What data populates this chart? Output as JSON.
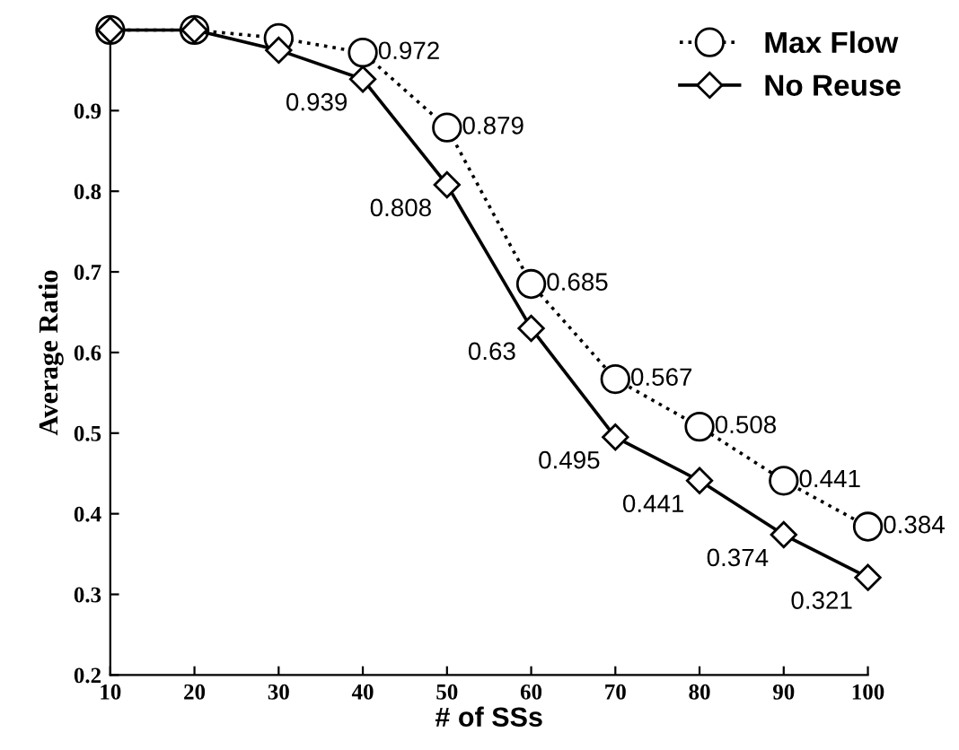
{
  "chart_data": {
    "type": "line",
    "xlabel": "# of SSs",
    "ylabel": "Average Ratio",
    "x": [
      10,
      20,
      30,
      40,
      50,
      60,
      70,
      80,
      90,
      100
    ],
    "series": [
      {
        "name": "Max Flow",
        "color": "#000000",
        "marker": "circle",
        "line_style": "dotted",
        "values": [
          1.0,
          1.0,
          0.99,
          0.972,
          0.879,
          0.685,
          0.567,
          0.508,
          0.441,
          0.384
        ],
        "value_labels": [
          null,
          null,
          null,
          "0.972",
          "0.879",
          "0.685",
          "0.567",
          "0.508",
          "0.441",
          "0.384"
        ]
      },
      {
        "name": "No Reuse",
        "color": "#000000",
        "marker": "diamond",
        "line_style": "solid",
        "values": [
          1.0,
          1.0,
          0.975,
          0.939,
          0.808,
          0.63,
          0.495,
          0.441,
          0.374,
          0.321
        ],
        "value_labels": [
          null,
          null,
          null,
          "0.939",
          "0.808",
          "0.63",
          "0.495",
          "0.441",
          "0.374",
          "0.321"
        ]
      }
    ],
    "xlim": [
      10,
      100
    ],
    "xticks": [
      10,
      20,
      30,
      40,
      50,
      60,
      70,
      80,
      90,
      100
    ],
    "ylim": [
      0.2,
      1.0
    ],
    "yticks": [
      0.2,
      0.3,
      0.4,
      0.5,
      0.6,
      0.7,
      0.8,
      0.9
    ],
    "grid": false,
    "legend": "top right"
  }
}
